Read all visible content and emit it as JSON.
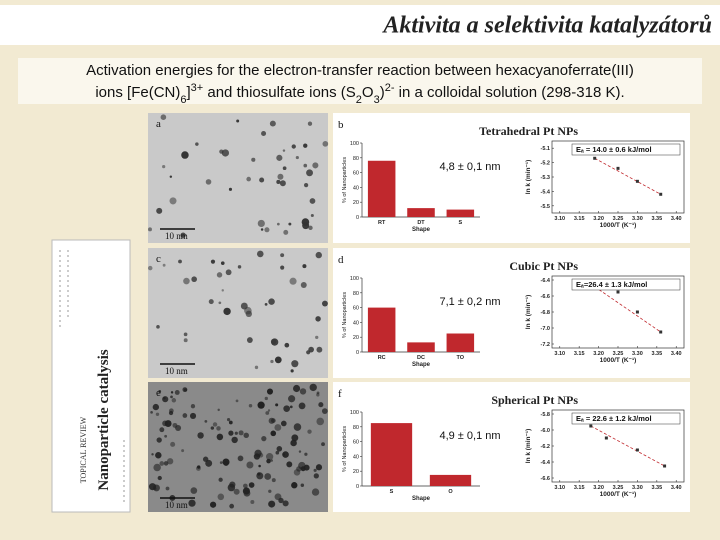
{
  "header": {
    "title": "Aktivita a selektivita katalyzátorů"
  },
  "caption": {
    "line1": [
      {
        "text": "Activation energies for the electron-transfer reaction between hexacyanoferrate(III)"
      }
    ],
    "line2": [
      {
        "text": "ions [Fe(CN)"
      },
      {
        "text": "6",
        "pos": "sub"
      },
      {
        "text": "]"
      },
      {
        "text": "3+",
        "pos": "sup"
      },
      {
        "text": " and thiosulfate ions (S"
      },
      {
        "text": "2",
        "pos": "sub"
      },
      {
        "text": "O"
      },
      {
        "text": "3",
        "pos": "sub"
      },
      {
        "text": ")"
      },
      {
        "text": "2-",
        "pos": "sup"
      },
      {
        "text": " in a colloidal solution (298-318 K)."
      }
    ]
  },
  "book": {
    "title": "Nanoparticle catalysis",
    "label": "TOPICAL REVIEW"
  },
  "panels": [
    {
      "image_label": "a",
      "scale": "10 nm",
      "plot_label": "b"
    },
    {
      "image_label": "c",
      "scale": "10 nm",
      "plot_label": "d"
    },
    {
      "image_label": "e",
      "scale": "10 nm",
      "plot_label": "f"
    }
  ],
  "chart_data": [
    {
      "type": "bar",
      "annotation": "4,8 ± 0,1 nm",
      "y_label": "% of Nanoparticles",
      "x_label": "Shape",
      "color": "#c0282d",
      "categories": [
        "RT",
        "DT",
        "S"
      ],
      "values": [
        76,
        12,
        10
      ],
      "ylim": [
        0,
        100
      ],
      "yticks": [
        0,
        20,
        40,
        60,
        80,
        100
      ]
    },
    {
      "type": "scatter",
      "title": "Tetrahedral Pt NPs",
      "annotation": "Eₐ = 14.0 ± 0.6 kJ/mol",
      "x_label": "1000/T (K⁻¹)",
      "y_label": "ln k (min⁻¹)",
      "color": "#c0282d",
      "x": [
        3.19,
        3.25,
        3.3,
        3.36
      ],
      "values": [
        -5.17,
        -5.24,
        -5.33,
        -5.42
      ],
      "xlim": [
        3.08,
        3.42
      ],
      "ylim": [
        -5.55,
        -5.05
      ],
      "xticks": [
        {
          "value": 3.1,
          "label": "3.10"
        },
        3.15,
        {
          "value": 3.2,
          "label": "3.20"
        },
        3.25,
        {
          "value": 3.3,
          "label": "3.30"
        },
        3.35,
        {
          "value": 3.4,
          "label": "3.40"
        }
      ],
      "yticks": [
        -5.1,
        -5.2,
        -5.3,
        -5.4,
        -5.5
      ]
    },
    {
      "type": "bar",
      "annotation": "7,1 ± 0,2 nm",
      "y_label": "% of Nanoparticles",
      "x_label": "Shape",
      "color": "#c0282d",
      "categories": [
        "RC",
        "DC",
        "TO"
      ],
      "values": [
        60,
        13,
        25
      ],
      "ylim": [
        0,
        100
      ],
      "yticks": [
        0,
        20,
        40,
        60,
        80,
        100
      ]
    },
    {
      "type": "scatter",
      "title": "Cubic Pt NPs",
      "annotation": "Eₐ=26.4 ± 1.3 kJ/mol",
      "x_label": "1000/T (K⁻¹)",
      "y_label": "ln k (min⁻¹)",
      "color": "#c0282d",
      "x": [
        3.18,
        3.25,
        3.3,
        3.36
      ],
      "values": [
        -6.45,
        -6.55,
        -6.8,
        -7.05
      ],
      "xlim": [
        3.08,
        3.42
      ],
      "ylim": [
        -7.25,
        -6.35
      ],
      "xticks": [
        {
          "value": 3.1,
          "label": "3.10"
        },
        3.15,
        {
          "value": 3.2,
          "label": "3.20"
        },
        3.25,
        {
          "value": 3.3,
          "label": "3.30"
        },
        3.35,
        {
          "value": 3.4,
          "label": "3.40"
        }
      ],
      "yticks": [
        -6.4,
        -6.6,
        -6.8,
        {
          "value": -7.0,
          "label": "-7.0"
        },
        -7.2
      ]
    },
    {
      "type": "bar",
      "annotation": "4,9 ± 0,1 nm",
      "y_label": "% of Nanoparticles",
      "x_label": "Shape",
      "color": "#c0282d",
      "categories": [
        "S",
        "O"
      ],
      "values": [
        85,
        15
      ],
      "ylim": [
        0,
        100
      ],
      "yticks": [
        0,
        20,
        40,
        60,
        80,
        100
      ]
    },
    {
      "type": "scatter",
      "title": "Spherical Pt NPs",
      "annotation": "Eₐ = 22.6 ± 1.2 kJ/mol",
      "x_label": "1000/T (K⁻¹)",
      "y_label": "ln k (min⁻¹)",
      "color": "#c0282d",
      "x": [
        3.18,
        3.22,
        3.3,
        3.37
      ],
      "values": [
        -5.95,
        -6.1,
        -6.25,
        -6.45
      ],
      "xlim": [
        3.08,
        3.42
      ],
      "ylim": [
        -6.65,
        -5.75
      ],
      "xticks": [
        {
          "value": 3.1,
          "label": "3.10"
        },
        3.15,
        {
          "value": 3.2,
          "label": "3.20"
        },
        3.25,
        {
          "value": 3.3,
          "label": "3.30"
        },
        3.35,
        {
          "value": 3.4,
          "label": "3.40"
        }
      ],
      "yticks": [
        -5.8,
        {
          "value": -6.0,
          "label": "-6.0"
        },
        -6.2,
        -6.4,
        -6.6
      ]
    }
  ]
}
